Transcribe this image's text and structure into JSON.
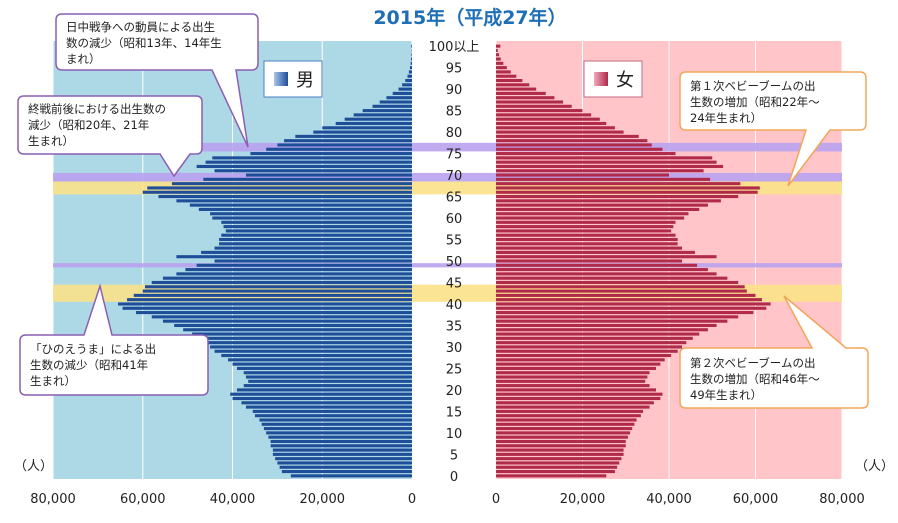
{
  "chart_data": {
    "type": "bar",
    "title": "2015年（平成27年）",
    "x_unit_label": "（人）",
    "xlim": [
      0,
      80000
    ],
    "x_tick_labels": [
      "80,000",
      "60,000",
      "40,000",
      "20,000",
      "0"
    ],
    "x_tick_labels_right": [
      "0",
      "20,000",
      "40,000",
      "60,000",
      "80,000"
    ],
    "age_labels": [
      "100以上",
      "95",
      "90",
      "85",
      "80",
      "75",
      "70",
      "65",
      "60",
      "55",
      "50",
      "45",
      "40",
      "35",
      "30",
      "25",
      "20",
      "15",
      "10",
      "5",
      "0"
    ],
    "series": [
      {
        "name": "男",
        "color": "#1f4e99",
        "panel_color": "#add8e6",
        "values": [
          27000,
          29000,
          29500,
          30000,
          30500,
          31000,
          31000,
          31500,
          31500,
          32000,
          32500,
          33000,
          33500,
          34000,
          35000,
          35500,
          37000,
          38000,
          40000,
          40500,
          39000,
          37500,
          36500,
          37000,
          37500,
          39000,
          40000,
          41000,
          42500,
          44000,
          45000,
          46000,
          47500,
          49000,
          51000,
          53000,
          55500,
          58000,
          61500,
          64500,
          65500,
          63500,
          62000,
          60000,
          59500,
          58000,
          55500,
          52500,
          50500,
          48000,
          44000,
          52500,
          47000,
          44000,
          43000,
          43000,
          42500,
          41500,
          42000,
          42500,
          44500,
          45000,
          47500,
          49500,
          52500,
          56500,
          60000,
          59000,
          53500,
          46500,
          37000,
          44000,
          48000,
          46000,
          44500,
          36000,
          32500,
          30000,
          28500,
          26000,
          22000,
          20000,
          17000,
          15000,
          13000,
          11000,
          8800,
          7200,
          5700,
          4300,
          3000,
          2200,
          1500,
          1000,
          700,
          450,
          300,
          200,
          120,
          70,
          150
        ]
      },
      {
        "name": "女",
        "color": "#b02a4a",
        "panel_color": "#ffc5c9",
        "values": [
          25500,
          27500,
          28000,
          28500,
          29000,
          29500,
          29500,
          30000,
          30000,
          30500,
          31000,
          31500,
          32000,
          32500,
          33500,
          34000,
          35500,
          36500,
          38000,
          38500,
          37000,
          35500,
          34500,
          35000,
          35500,
          37000,
          38000,
          39000,
          40500,
          42000,
          43000,
          44000,
          45500,
          47000,
          49000,
          51000,
          53500,
          56000,
          59500,
          62500,
          63500,
          61500,
          60000,
          58000,
          57500,
          56000,
          53500,
          51000,
          49000,
          46500,
          43000,
          51000,
          46000,
          43000,
          42000,
          42000,
          41500,
          40500,
          41000,
          41500,
          43500,
          44500,
          47000,
          49000,
          52000,
          56000,
          60500,
          61000,
          56500,
          49500,
          40000,
          48000,
          52500,
          51000,
          50000,
          41500,
          38500,
          36000,
          35000,
          33000,
          29500,
          27500,
          25500,
          24000,
          22000,
          20000,
          17500,
          15500,
          13500,
          11500,
          9300,
          7700,
          6100,
          4700,
          3400,
          2500,
          1700,
          1100,
          700,
          400,
          1000
        ]
      }
    ],
    "legend": [
      "男",
      "女"
    ]
  },
  "annotations": {
    "left_top": "日中戦争への動員による出生数の減少（昭和13年、14年生まれ）",
    "left_mid": "終戦前後における出生数の減少（昭和20年、21年生まれ）",
    "left_bottom": "「ひのえうま」による出生数の減少（昭和41年生まれ）",
    "right_top": "第１次ベビーブームの出生数の増加（昭和22年～24年生まれ）",
    "right_bottom": "第２次ベビーブームの出生数の増加（昭和46年～49年生まれ）"
  },
  "colors": {
    "male_panel": "#add8e6",
    "female_panel": "#ffc5c9",
    "male_bar": "#1f4e99",
    "female_bar": "#b02a4a",
    "band_purple": "#b9a2f0",
    "band_yellow": "#fbe28a",
    "note_border": "#8a5fb4",
    "note_border_orange": "#f2a65a",
    "title": "#1f6fb7"
  }
}
